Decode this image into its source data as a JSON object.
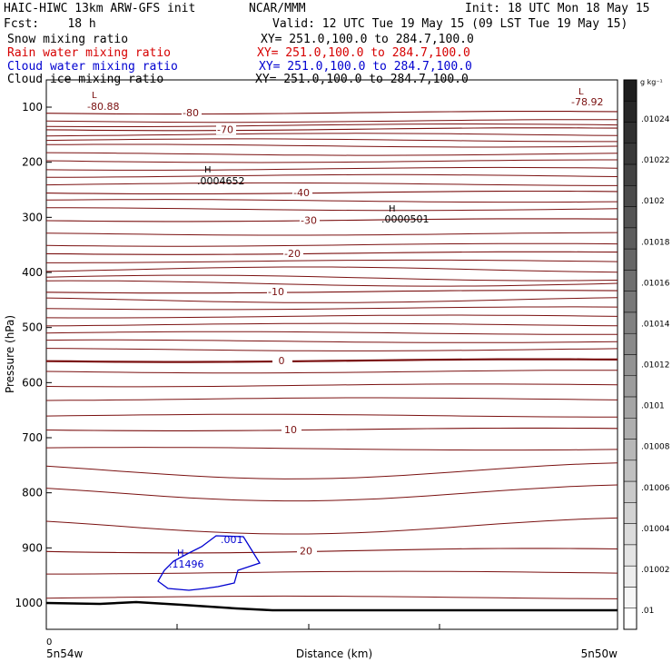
{
  "header": {
    "left_title": "HAIC-HIWC 13km ARW-GFS init",
    "center_title": "NCAR/MMM",
    "init": "Init: 18 UTC Mon 18 May 15",
    "fcst": "Fcst:    18 h",
    "valid": "Valid: 12 UTC Tue 19 May 15 (09 LST Tue 19 May 15)",
    "fields": [
      {
        "name": "Snow mixing ratio",
        "xy": "XY= 251.0,100.0 to 284.7,100.0",
        "color": "#000000"
      },
      {
        "name": "Rain water mixing ratio",
        "xy": "XY= 251.0,100.0 to 284.7,100.0",
        "color": "#d60000"
      },
      {
        "name": "Cloud water mixing ratio",
        "xy": "XY= 251.0,100.0 to 284.7,100.0",
        "color": "#0000d0"
      },
      {
        "name": "Cloud ice mixing ratio",
        "xy": "XY= 251.0,100.0 to 284.7,100.0",
        "color": "#000000"
      }
    ]
  },
  "chart_data": {
    "type": "contour-cross-section",
    "xlabel": "Distance (km)",
    "ylabel": "Pressure (hPa)",
    "x_start_label": "5n54w",
    "x_end_label": "5n50w",
    "x_zero_tick": "0",
    "ylim": [
      1050,
      80
    ],
    "y_ticks": [
      100,
      200,
      300,
      400,
      500,
      600,
      700,
      800,
      900,
      1000
    ],
    "contour_color": "#7a1010",
    "temperature_contours": [
      {
        "label": "-80",
        "p": 110
      },
      {
        "label": "-70",
        "p": 140
      },
      {
        "label": "-40",
        "p": 255
      },
      {
        "label": "-30",
        "p": 305
      },
      {
        "label": "-20",
        "p": 365
      },
      {
        "label": "-10",
        "p": 435
      },
      {
        "label": "0",
        "p": 560
      },
      {
        "label": "10",
        "p": 685
      },
      {
        "label": "20",
        "p": 905
      }
    ],
    "extrema": [
      {
        "kind": "L",
        "value": "-80.88",
        "color": "#7a1010"
      },
      {
        "kind": "L",
        "value": "-78.92",
        "color": "#7a1010"
      },
      {
        "kind": "H",
        "value": ".0004652",
        "color": "#000000"
      },
      {
        "kind": "H",
        "value": ".0000501",
        "color": "#000000"
      },
      {
        "kind": "H",
        "value": ".11496",
        "color": "#0000d0"
      }
    ],
    "cloud_water_contour": {
      "label": ".001",
      "color": "#0000d0"
    },
    "colorbar": {
      "unit": "g kg⁻¹",
      "labels": [
        ".01024",
        ".01022",
        ".0102",
        ".01018",
        ".01016",
        ".01014",
        ".01012",
        ".0101",
        ".01008",
        ".01006",
        ".01004",
        ".01002",
        ".01"
      ]
    }
  }
}
